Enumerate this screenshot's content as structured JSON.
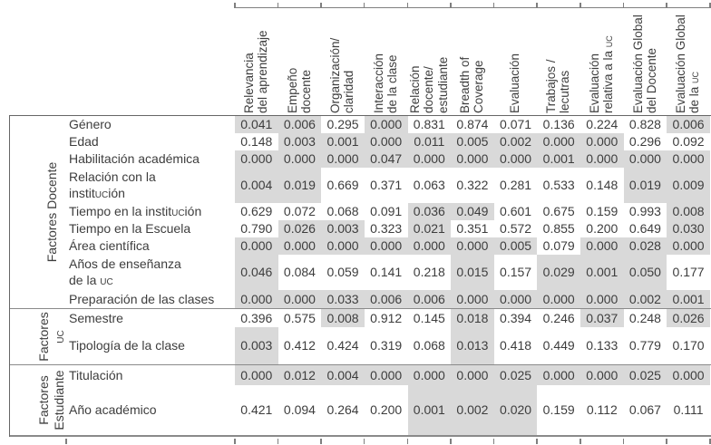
{
  "table": {
    "description_labels": {
      "significance_threshold": 0.05
    },
    "colors": {
      "cell_shading": "#d9d9d9",
      "rule_lines": "#7f7f7f",
      "text": "#3d3d3d"
    },
    "columns": [
      {
        "lines": [
          "Relevancia",
          "del aprendizaje"
        ]
      },
      {
        "lines": [
          "Empeño",
          "docente"
        ]
      },
      {
        "lines": [
          "Organización/",
          "claridad"
        ]
      },
      {
        "lines": [
          "Interacción",
          "de la clase"
        ]
      },
      {
        "lines": [
          "Relación",
          "docente/",
          "estudiante"
        ]
      },
      {
        "lines": [
          "Breadth of",
          "Coverage"
        ]
      },
      {
        "lines": [
          "Evaluación"
        ]
      },
      {
        "lines": [
          "Trabajos /",
          "lecutras"
        ]
      },
      {
        "lines": [
          "Evaluación",
          "relativa a la uc"
        ]
      },
      {
        "lines": [
          "Evaluación Global",
          "del Docente"
        ]
      },
      {
        "lines": [
          "Evaluación Global",
          "de la uc"
        ]
      }
    ],
    "groups": [
      {
        "label_lines": [
          "Factores Docente"
        ],
        "rows": [
          {
            "label_lines": [
              "Género"
            ],
            "values": [
              "0.041",
              "0.006",
              "0.295",
              "0.000",
              "0.831",
              "0.874",
              "0.071",
              "0.136",
              "0.224",
              "0.828",
              "0.006"
            ]
          },
          {
            "label_lines": [
              "Edad"
            ],
            "values": [
              "0.148",
              "0.003",
              "0.001",
              "0.000",
              "0.011",
              "0.005",
              "0.002",
              "0.000",
              "0.000",
              "0.296",
              "0.092"
            ]
          },
          {
            "label_lines": [
              "Habilitación académica"
            ],
            "values": [
              "0.000",
              "0.000",
              "0.000",
              "0.047",
              "0.000",
              "0.000",
              "0.000",
              "0.001",
              "0.000",
              "0.000",
              "0.000"
            ]
          },
          {
            "label_lines": [
              "Relación con la",
              "institución"
            ],
            "values": [
              "0.004",
              "0.019",
              "0.669",
              "0.371",
              "0.063",
              "0.322",
              "0.281",
              "0.533",
              "0.148",
              "0.019",
              "0.009"
            ]
          },
          {
            "label_lines": [
              "Tiempo en la institución"
            ],
            "values": [
              "0.629",
              "0.072",
              "0.068",
              "0.091",
              "0.036",
              "0.049",
              "0.601",
              "0.675",
              "0.159",
              "0.993",
              "0.008"
            ]
          },
          {
            "label_lines": [
              "Tiempo en la Escuela"
            ],
            "values": [
              "0.790",
              "0.026",
              "0.003",
              "0.323",
              "0.021",
              "0.351",
              "0.572",
              "0.855",
              "0.200",
              "0.649",
              "0.030"
            ]
          },
          {
            "label_lines": [
              "Área científica"
            ],
            "values": [
              "0.000",
              "0.000",
              "0.000",
              "0.000",
              "0.000",
              "0.000",
              "0.005",
              "0.079",
              "0.000",
              "0.028",
              "0.000"
            ]
          },
          {
            "label_lines": [
              "Años de enseñanza",
              "de la uc"
            ],
            "values": [
              "0.046",
              "0.084",
              "0.059",
              "0.141",
              "0.218",
              "0.015",
              "0.157",
              "0.029",
              "0.001",
              "0.050",
              "0.177"
            ]
          },
          {
            "label_lines": [
              "Preparación de las clases"
            ],
            "values": [
              "0.000",
              "0.000",
              "0.033",
              "0.006",
              "0.006",
              "0.000",
              "0.000",
              "0.000",
              "0.000",
              "0.002",
              "0.001"
            ]
          }
        ]
      },
      {
        "label_lines": [
          "Factores",
          "uc"
        ],
        "rows": [
          {
            "label_lines": [
              "Semestre"
            ],
            "values": [
              "0.396",
              "0.575",
              "0.008",
              "0.912",
              "0.145",
              "0.018",
              "0.394",
              "0.246",
              "0.037",
              "0.248",
              "0.026"
            ]
          },
          {
            "label_lines": [
              "Tipología de la clase"
            ],
            "values": [
              "0.003",
              "0.412",
              "0.424",
              "0.319",
              "0.068",
              "0.013",
              "0.418",
              "0.449",
              "0.133",
              "0.779",
              "0.170"
            ]
          }
        ]
      },
      {
        "label_lines": [
          "Factores",
          "Estudiante"
        ],
        "rows": [
          {
            "label_lines": [
              "Titulación"
            ],
            "values": [
              "0.000",
              "0.012",
              "0.004",
              "0.000",
              "0.000",
              "0.000",
              "0.025",
              "0.000",
              "0.000",
              "0.025",
              "0.000"
            ]
          },
          {
            "label_lines": [
              "Año académico"
            ],
            "values": [
              "0.421",
              "0.094",
              "0.264",
              "0.200",
              "0.001",
              "0.002",
              "0.020",
              "0.159",
              "0.112",
              "0.067",
              "0.111"
            ]
          }
        ]
      }
    ]
  }
}
